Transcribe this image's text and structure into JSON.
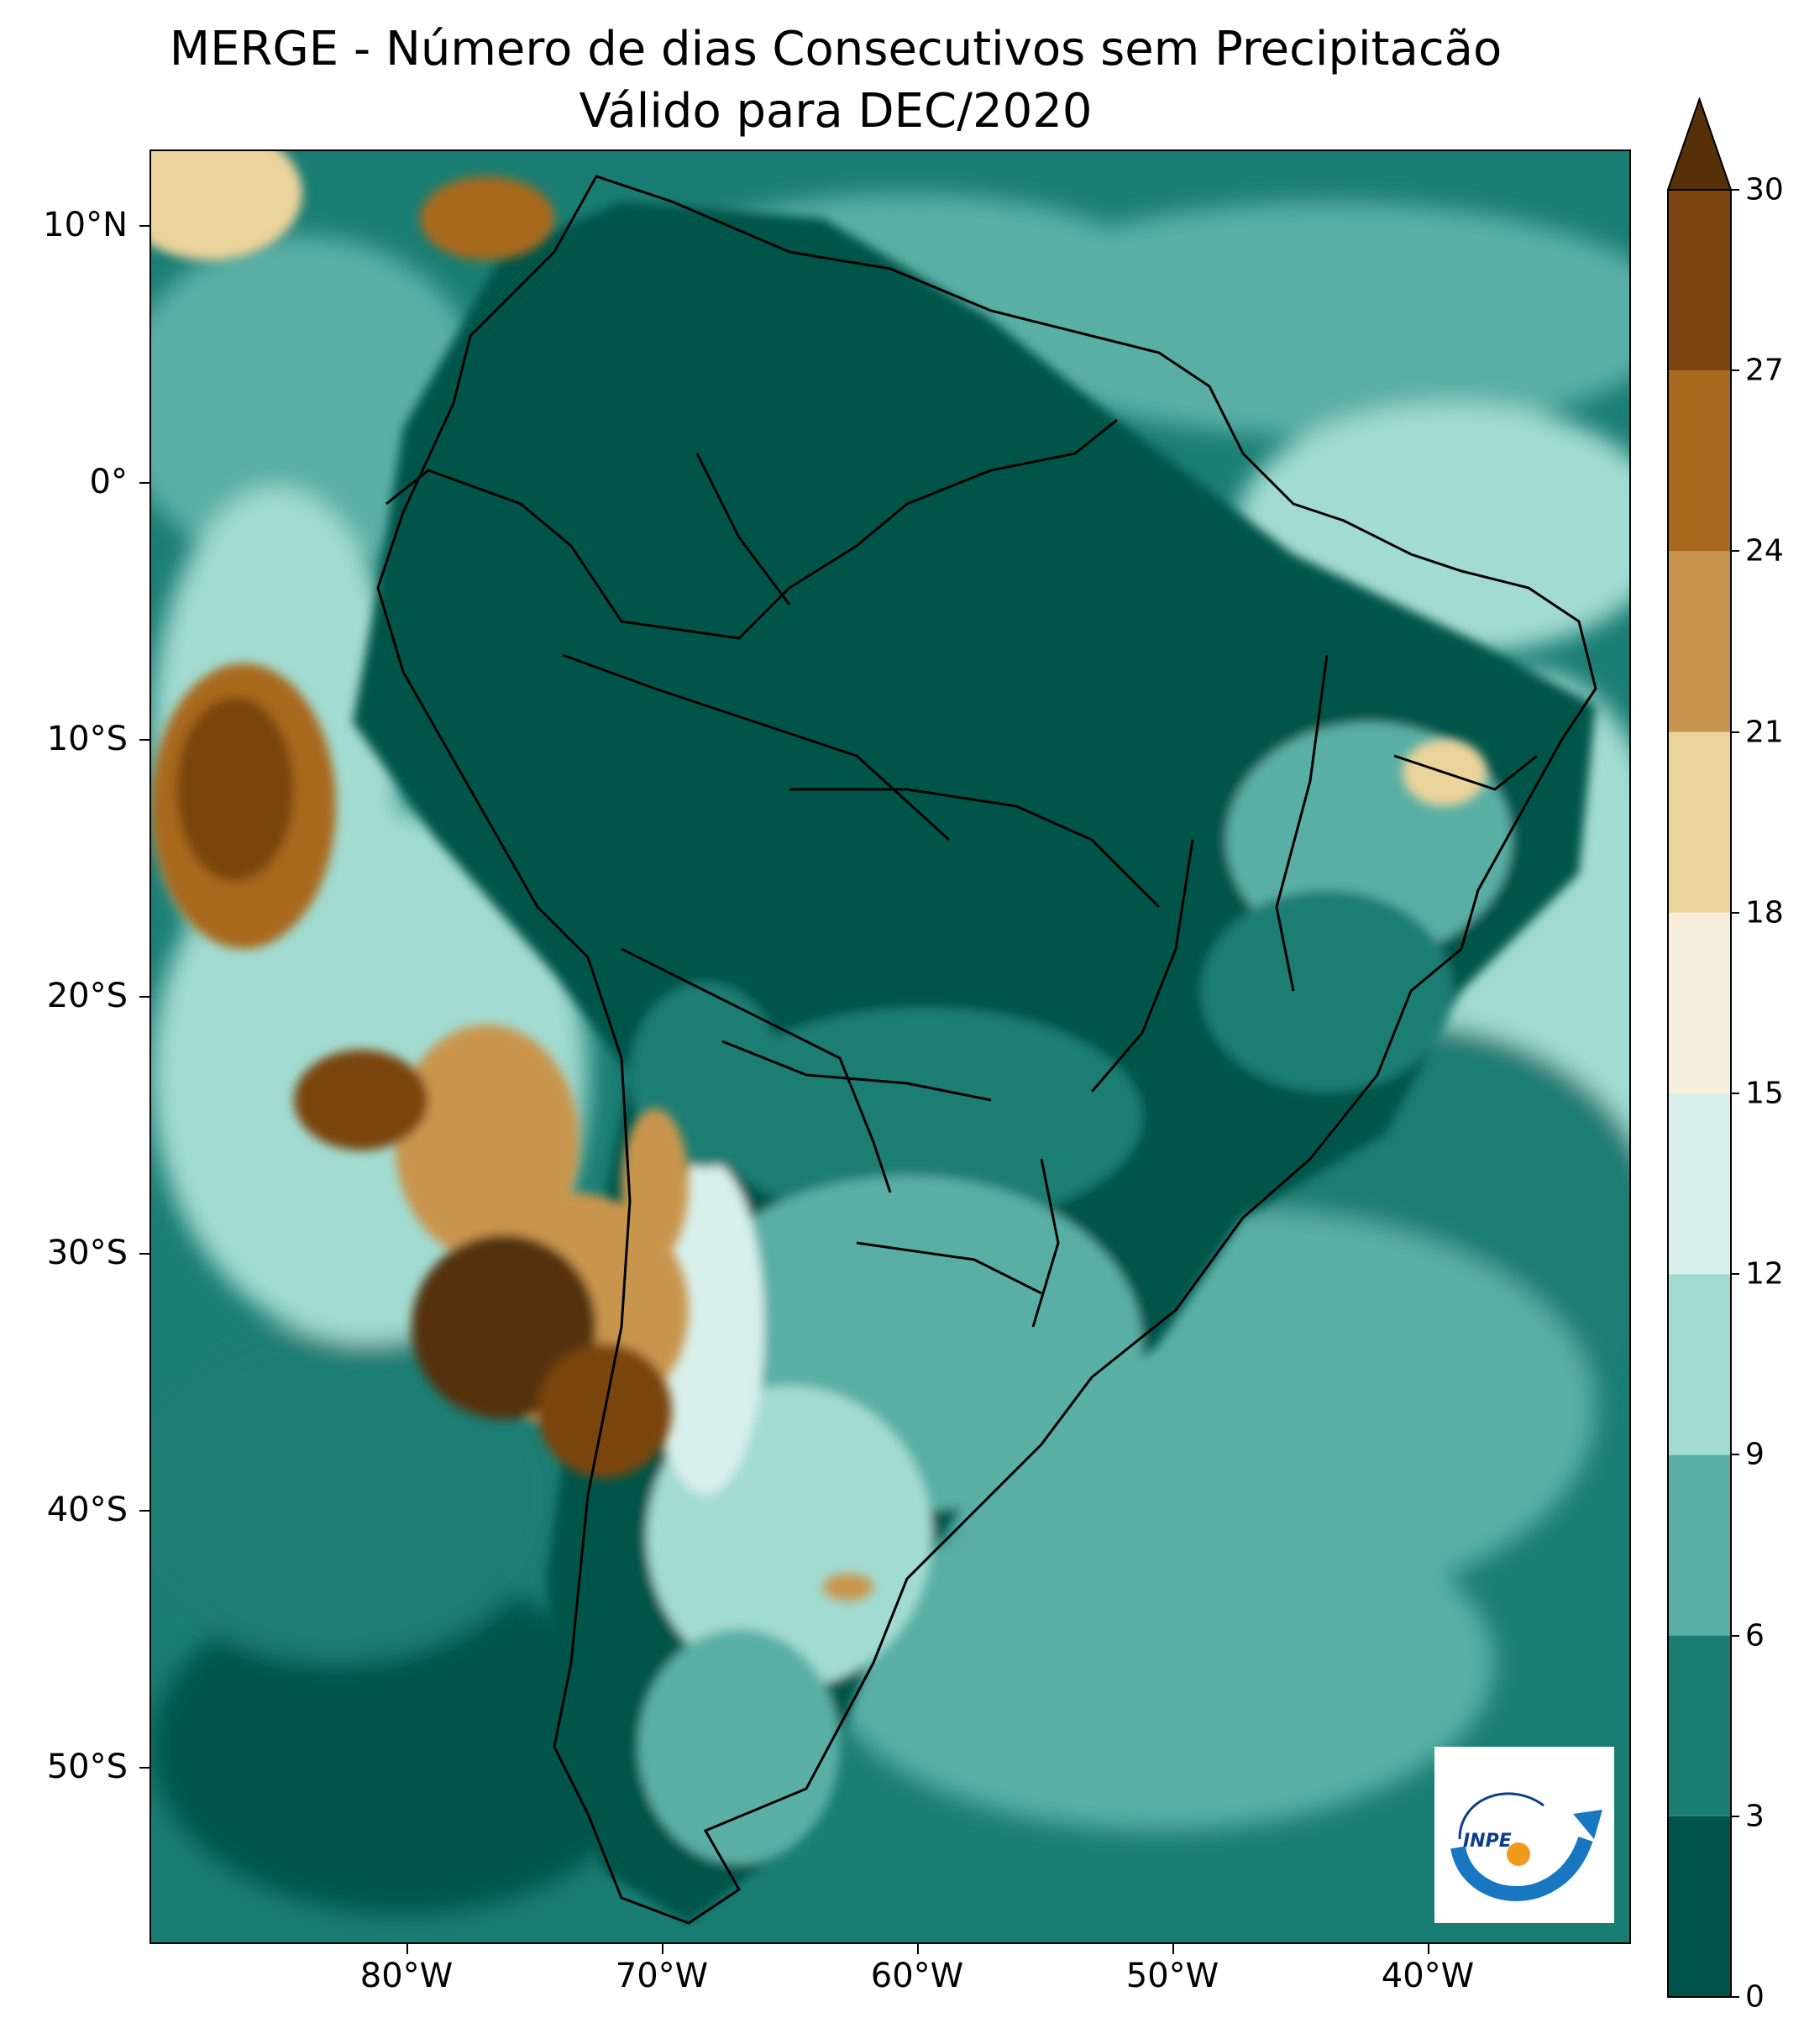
{
  "title": {
    "line1": "MERGE - Número de dias Consecutivos sem Precipitacão",
    "line2": "Válido para DEC/2020"
  },
  "axes": {
    "y_ticks": [
      {
        "value": 10,
        "label": "10°N"
      },
      {
        "value": 0,
        "label": "0°"
      },
      {
        "value": -10,
        "label": "10°S"
      },
      {
        "value": -20,
        "label": "20°S"
      },
      {
        "value": -30,
        "label": "30°S"
      },
      {
        "value": -40,
        "label": "40°S"
      },
      {
        "value": -50,
        "label": "50°S"
      }
    ],
    "x_ticks": [
      {
        "value": -80,
        "label": "80°W"
      },
      {
        "value": -70,
        "label": "70°W"
      },
      {
        "value": -60,
        "label": "60°W"
      },
      {
        "value": -50,
        "label": "50°W"
      },
      {
        "value": -40,
        "label": "40°W"
      }
    ],
    "lon_range": [
      -90,
      -32
    ],
    "lat_range": [
      -57,
      13
    ]
  },
  "colorbar": {
    "levels": [
      0,
      3,
      6,
      9,
      12,
      15,
      18,
      21,
      24,
      27,
      30
    ],
    "labels": [
      "0",
      "3",
      "6",
      "9",
      "12",
      "15",
      "18",
      "21",
      "24",
      "27",
      "30"
    ],
    "colors": [
      "#01544a",
      "#1a7d73",
      "#5aafa4",
      "#a2dbd1",
      "#d8f0ec",
      "#f7efdb",
      "#ebd39c",
      "#c9954e",
      "#a8691f",
      "#7a4510"
    ],
    "extend_color": "#553009",
    "extend": "max"
  },
  "logo": {
    "text": "INPE"
  }
}
